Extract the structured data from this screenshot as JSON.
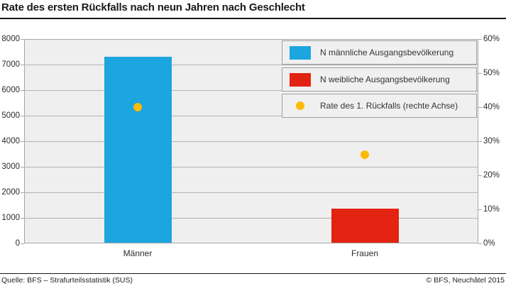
{
  "title": "Rate des ersten Rückfalls nach neun Jahren nach Geschlecht",
  "footer": {
    "source": "Quelle: BFS – Strafurteilsstatistik (SUS)",
    "copyright": "© BFS, Neuchâtel 2015"
  },
  "colors": {
    "male_bar": "#1ca6df",
    "female_bar": "#e32311",
    "rate_dot": "#fbba07",
    "plot_background": "#efefef",
    "gridline": "#b3b3b3",
    "plot_border": "#a6a6a6",
    "title_text": "#1a1a1a",
    "axis_text": "#2b2b2b"
  },
  "legend": {
    "items": [
      {
        "label": "N männliche Ausgangsbevölkerung",
        "marker": "square",
        "color": "#1ca6df"
      },
      {
        "label": "N weibliche Ausgangsbevölkerung",
        "marker": "square",
        "color": "#e32311"
      },
      {
        "label": "Rate des 1. Rückfalls (rechte Achse)",
        "marker": "circle",
        "color": "#fbba07"
      }
    ]
  },
  "chart_data": {
    "type": "bar",
    "title": "Rate des ersten Rückfalls nach neun Jahren nach Geschlecht",
    "categories": [
      "Männer",
      "Frauen"
    ],
    "series": [
      {
        "name": "N männliche Ausgangsbevölkerung",
        "type": "bar",
        "axis": "left",
        "color": "#1ca6df",
        "values": [
          7300,
          null
        ]
      },
      {
        "name": "N weibliche Ausgangsbevölkerung",
        "type": "bar",
        "axis": "left",
        "color": "#e32311",
        "values": [
          null,
          1360
        ]
      },
      {
        "name": "Rate des 1. Rückfalls (rechte Achse)",
        "type": "scatter",
        "axis": "right",
        "color": "#fbba07",
        "values": [
          40,
          26
        ]
      }
    ],
    "left_axis": {
      "min": 0,
      "max": 8000,
      "step": 1000,
      "tick_labels": [
        "0",
        "1000",
        "2000",
        "3000",
        "4000",
        "5000",
        "6000",
        "7000",
        "8000"
      ]
    },
    "right_axis": {
      "min": 0,
      "max": 60,
      "step": 10,
      "tick_labels": [
        "0%",
        "10%",
        "20%",
        "30%",
        "40%",
        "50%",
        "60%"
      ]
    },
    "grid": "horizontal-at-left-axis-steps",
    "legend_position": "top-right-inside"
  }
}
